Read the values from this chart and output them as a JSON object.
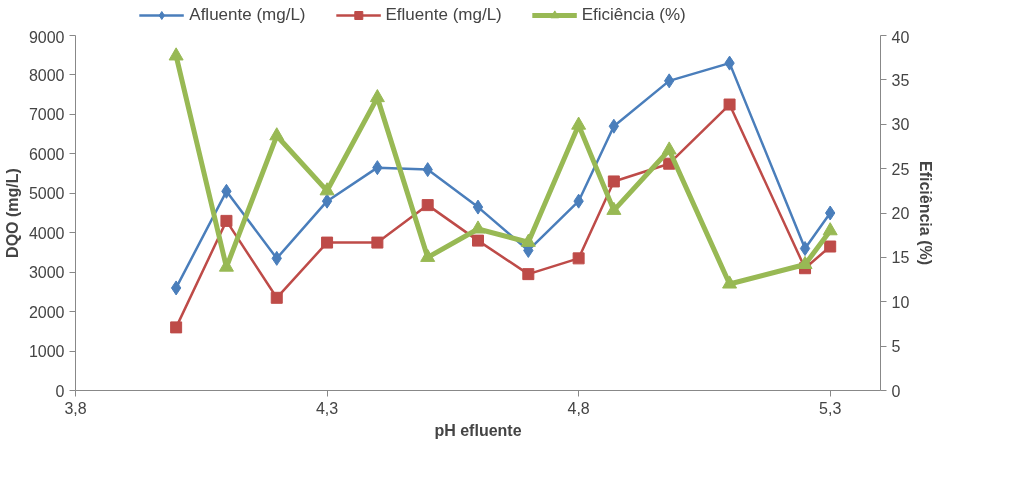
{
  "chart_data": {
    "type": "line",
    "xlabel": "pH efluente",
    "ylabel": "DQO (mg/L)",
    "y2label": "Eficiência (%)",
    "x": [
      4.0,
      4.1,
      4.2,
      4.3,
      4.4,
      4.5,
      4.6,
      4.7,
      4.8,
      4.87,
      4.98,
      5.1,
      5.25,
      5.3
    ],
    "series": [
      {
        "name": "Afluente (mg/L)",
        "color": "#4a7ebb",
        "marker": "diamond",
        "values": [
          2600,
          5050,
          3350,
          4800,
          5650,
          5600,
          4650,
          3550,
          4800,
          6700,
          7850,
          8300,
          3600,
          4500
        ]
      },
      {
        "name": "Efluente (mg/L)",
        "color": "#be4b48",
        "marker": "square",
        "values": [
          1600,
          4300,
          2350,
          3750,
          3750,
          4700,
          3800,
          2950,
          3350,
          5300,
          5750,
          7250,
          3100,
          3650
        ]
      },
      {
        "name": "Eficiência (%)",
        "color": "#98b954",
        "marker": "triangle",
        "axis": "y2",
        "values": [
          37.7,
          13.9,
          28.7,
          22.5,
          33.0,
          15.0,
          18.2,
          16.7,
          29.9,
          20.3,
          27.1,
          12.0,
          14.2,
          18.0
        ]
      }
    ],
    "xlim": [
      3.8,
      5.4
    ],
    "xticks": [
      {
        "value": 3.8,
        "label": "3,8"
      },
      {
        "value": 4.3,
        "label": "4,3"
      },
      {
        "value": 4.8,
        "label": "4,8"
      },
      {
        "value": 5.3,
        "label": "5,3"
      }
    ],
    "ylim": [
      0,
      9000
    ],
    "yticks": [
      0,
      1000,
      2000,
      3000,
      4000,
      5000,
      6000,
      7000,
      8000,
      9000
    ],
    "y2lim": [
      0,
      40
    ],
    "y2ticks": [
      0,
      5,
      10,
      15,
      20,
      25,
      30,
      35,
      40
    ],
    "grid": false,
    "legend": "top",
    "line_style": "solid"
  }
}
